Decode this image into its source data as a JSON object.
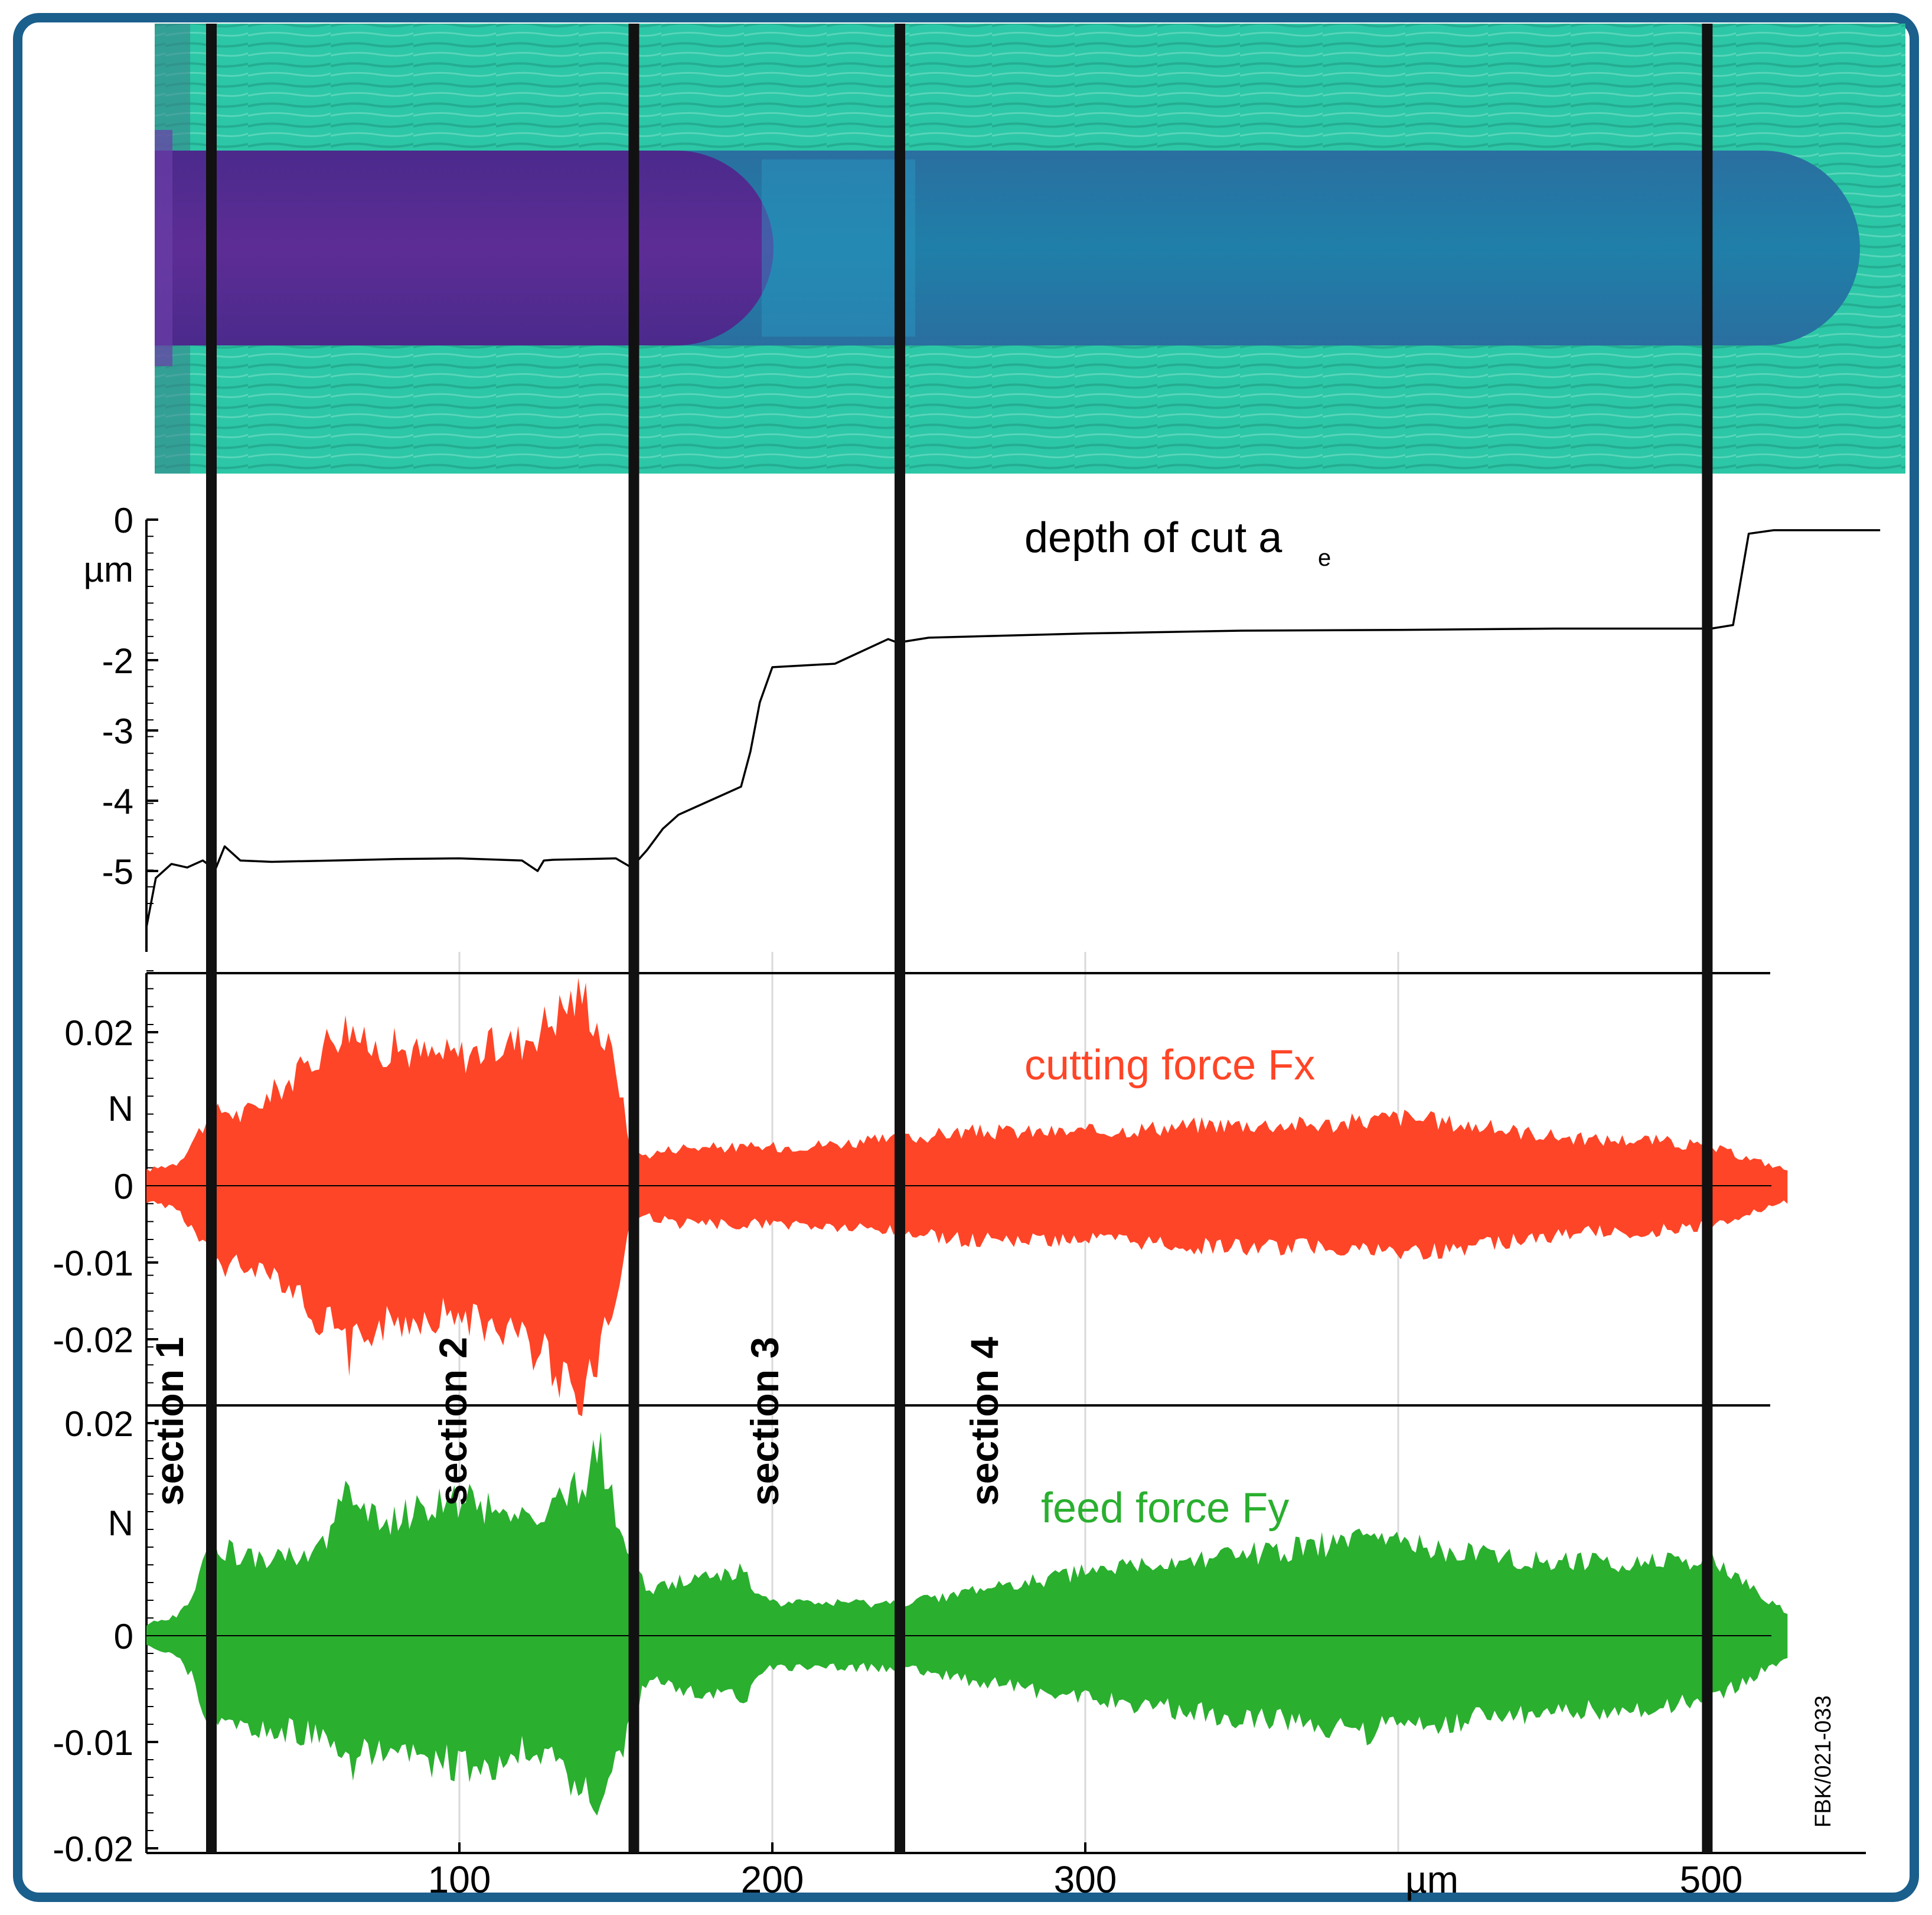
{
  "figure_id": "FBK/021-033",
  "colors": {
    "frame": "#1b5f8c",
    "depth_line": "#000000",
    "cutting_force": "#ff4527",
    "feed_force": "#2aaf2f",
    "grid": "#d9d9d9",
    "surface_base": "#2cc7a6",
    "surface_groove_deep": "#5a2a8e",
    "surface_groove_shallow": "#1f7fa8"
  },
  "sections": [
    {
      "label": "section 1",
      "start_um": 20,
      "end_um": 155
    },
    {
      "label": "section 2",
      "start_um": 155,
      "end_um": 240
    },
    {
      "label": "section 3",
      "start_um": 240,
      "end_um": 498
    },
    {
      "label": "section 4",
      "start_um": 498,
      "end_um": 498
    }
  ],
  "section_boundaries_um": [
    20,
    155,
    240,
    498
  ],
  "chart_data": [
    {
      "type": "line",
      "title": "depth of cut a",
      "title_subscript": "e",
      "ylabel": "µm",
      "ylim": [
        -5.7,
        0
      ],
      "yticks": [
        0,
        -2,
        -3,
        -4,
        -5
      ],
      "ytick_labels": [
        "0",
        "-2",
        "-3",
        "-4",
        "-5"
      ],
      "xlim": [
        0,
        560
      ],
      "x": [
        0,
        3,
        8,
        13,
        18,
        22,
        25,
        30,
        40,
        60,
        80,
        100,
        120,
        125,
        127,
        130,
        150,
        155,
        160,
        165,
        170,
        175,
        180,
        185,
        190,
        193,
        196,
        200,
        220,
        237,
        240,
        250,
        300,
        350,
        400,
        450,
        500,
        507,
        512,
        520,
        554
      ],
      "y": [
        -5.8,
        -5.1,
        -4.9,
        -4.95,
        -4.85,
        -4.98,
        -4.65,
        -4.85,
        -4.87,
        -4.85,
        -4.83,
        -4.82,
        -4.85,
        -5.0,
        -4.85,
        -4.84,
        -4.82,
        -4.95,
        -4.7,
        -4.4,
        -4.2,
        -4.1,
        -4.0,
        -3.9,
        -3.8,
        -3.3,
        -2.6,
        -2.1,
        -2.05,
        -1.7,
        -1.75,
        -1.68,
        -1.62,
        -1.58,
        -1.57,
        -1.55,
        -1.55,
        -1.5,
        -0.2,
        -0.15,
        -0.15
      ]
    },
    {
      "type": "area",
      "title": "cutting force Fx",
      "ylabel": "N",
      "ylim": [
        -0.028,
        0.028
      ],
      "yticks": [
        0.02,
        0,
        -0.01,
        -0.02
      ],
      "ytick_labels": [
        "0.02",
        "0",
        "-0.01",
        "-0.02"
      ],
      "xlim": [
        0,
        560
      ],
      "x": [
        0,
        10,
        15,
        20,
        25,
        30,
        40,
        50,
        60,
        65,
        70,
        80,
        90,
        100,
        110,
        120,
        130,
        135,
        140,
        145,
        150,
        155,
        160,
        170,
        200,
        240,
        260,
        300,
        340,
        380,
        400,
        420,
        440,
        460,
        480,
        500,
        525
      ],
      "upper": [
        0.002,
        0.003,
        0.006,
        0.009,
        0.01,
        0.009,
        0.012,
        0.015,
        0.02,
        0.021,
        0.018,
        0.018,
        0.017,
        0.017,
        0.018,
        0.019,
        0.022,
        0.024,
        0.025,
        0.02,
        0.016,
        0.004,
        0.004,
        0.005,
        0.005,
        0.006,
        0.007,
        0.007,
        0.008,
        0.008,
        0.009,
        0.008,
        0.007,
        0.006,
        0.006,
        0.005,
        0.002
      ],
      "lower": [
        -0.002,
        -0.003,
        -0.006,
        -0.009,
        -0.011,
        -0.01,
        -0.011,
        -0.015,
        -0.019,
        -0.022,
        -0.019,
        -0.018,
        -0.017,
        -0.017,
        -0.018,
        -0.02,
        -0.023,
        -0.026,
        -0.027,
        -0.021,
        -0.015,
        -0.004,
        -0.004,
        -0.005,
        -0.005,
        -0.006,
        -0.007,
        -0.007,
        -0.008,
        -0.008,
        -0.009,
        -0.008,
        -0.007,
        -0.006,
        -0.006,
        -0.005,
        -0.002
      ]
    },
    {
      "type": "area",
      "title": "feed force Fy",
      "ylabel": "N",
      "ylim": [
        -0.02,
        0.02
      ],
      "yticks": [
        0.02,
        0,
        -0.01,
        -0.02
      ],
      "ytick_labels": [
        "0.02",
        "0",
        "-0.01",
        "-0.02"
      ],
      "xlim": [
        0,
        560
      ],
      "xticks": [
        100,
        200,
        300,
        500
      ],
      "xtick_labels": [
        "100",
        "200",
        "300",
        "500"
      ],
      "xlabel": "µm",
      "x": [
        0,
        10,
        15,
        20,
        25,
        40,
        55,
        65,
        70,
        80,
        90,
        100,
        110,
        120,
        130,
        140,
        145,
        150,
        155,
        160,
        170,
        190,
        200,
        220,
        240,
        260,
        280,
        300,
        330,
        360,
        390,
        420,
        450,
        480,
        500,
        525
      ],
      "upper": [
        0.001,
        0.002,
        0.004,
        0.009,
        0.008,
        0.007,
        0.008,
        0.014,
        0.011,
        0.011,
        0.012,
        0.013,
        0.012,
        0.011,
        0.012,
        0.015,
        0.017,
        0.012,
        0.008,
        0.004,
        0.005,
        0.006,
        0.003,
        0.003,
        0.003,
        0.004,
        0.005,
        0.006,
        0.007,
        0.008,
        0.009,
        0.008,
        0.007,
        0.007,
        0.007,
        0.002
      ],
      "lower": [
        -0.001,
        -0.002,
        -0.004,
        -0.008,
        -0.008,
        -0.009,
        -0.009,
        -0.013,
        -0.011,
        -0.011,
        -0.012,
        -0.012,
        -0.012,
        -0.011,
        -0.012,
        -0.014,
        -0.016,
        -0.012,
        -0.008,
        -0.004,
        -0.005,
        -0.006,
        -0.003,
        -0.003,
        -0.003,
        -0.004,
        -0.005,
        -0.006,
        -0.007,
        -0.008,
        -0.009,
        -0.008,
        -0.007,
        -0.007,
        -0.006,
        -0.002
      ]
    }
  ]
}
